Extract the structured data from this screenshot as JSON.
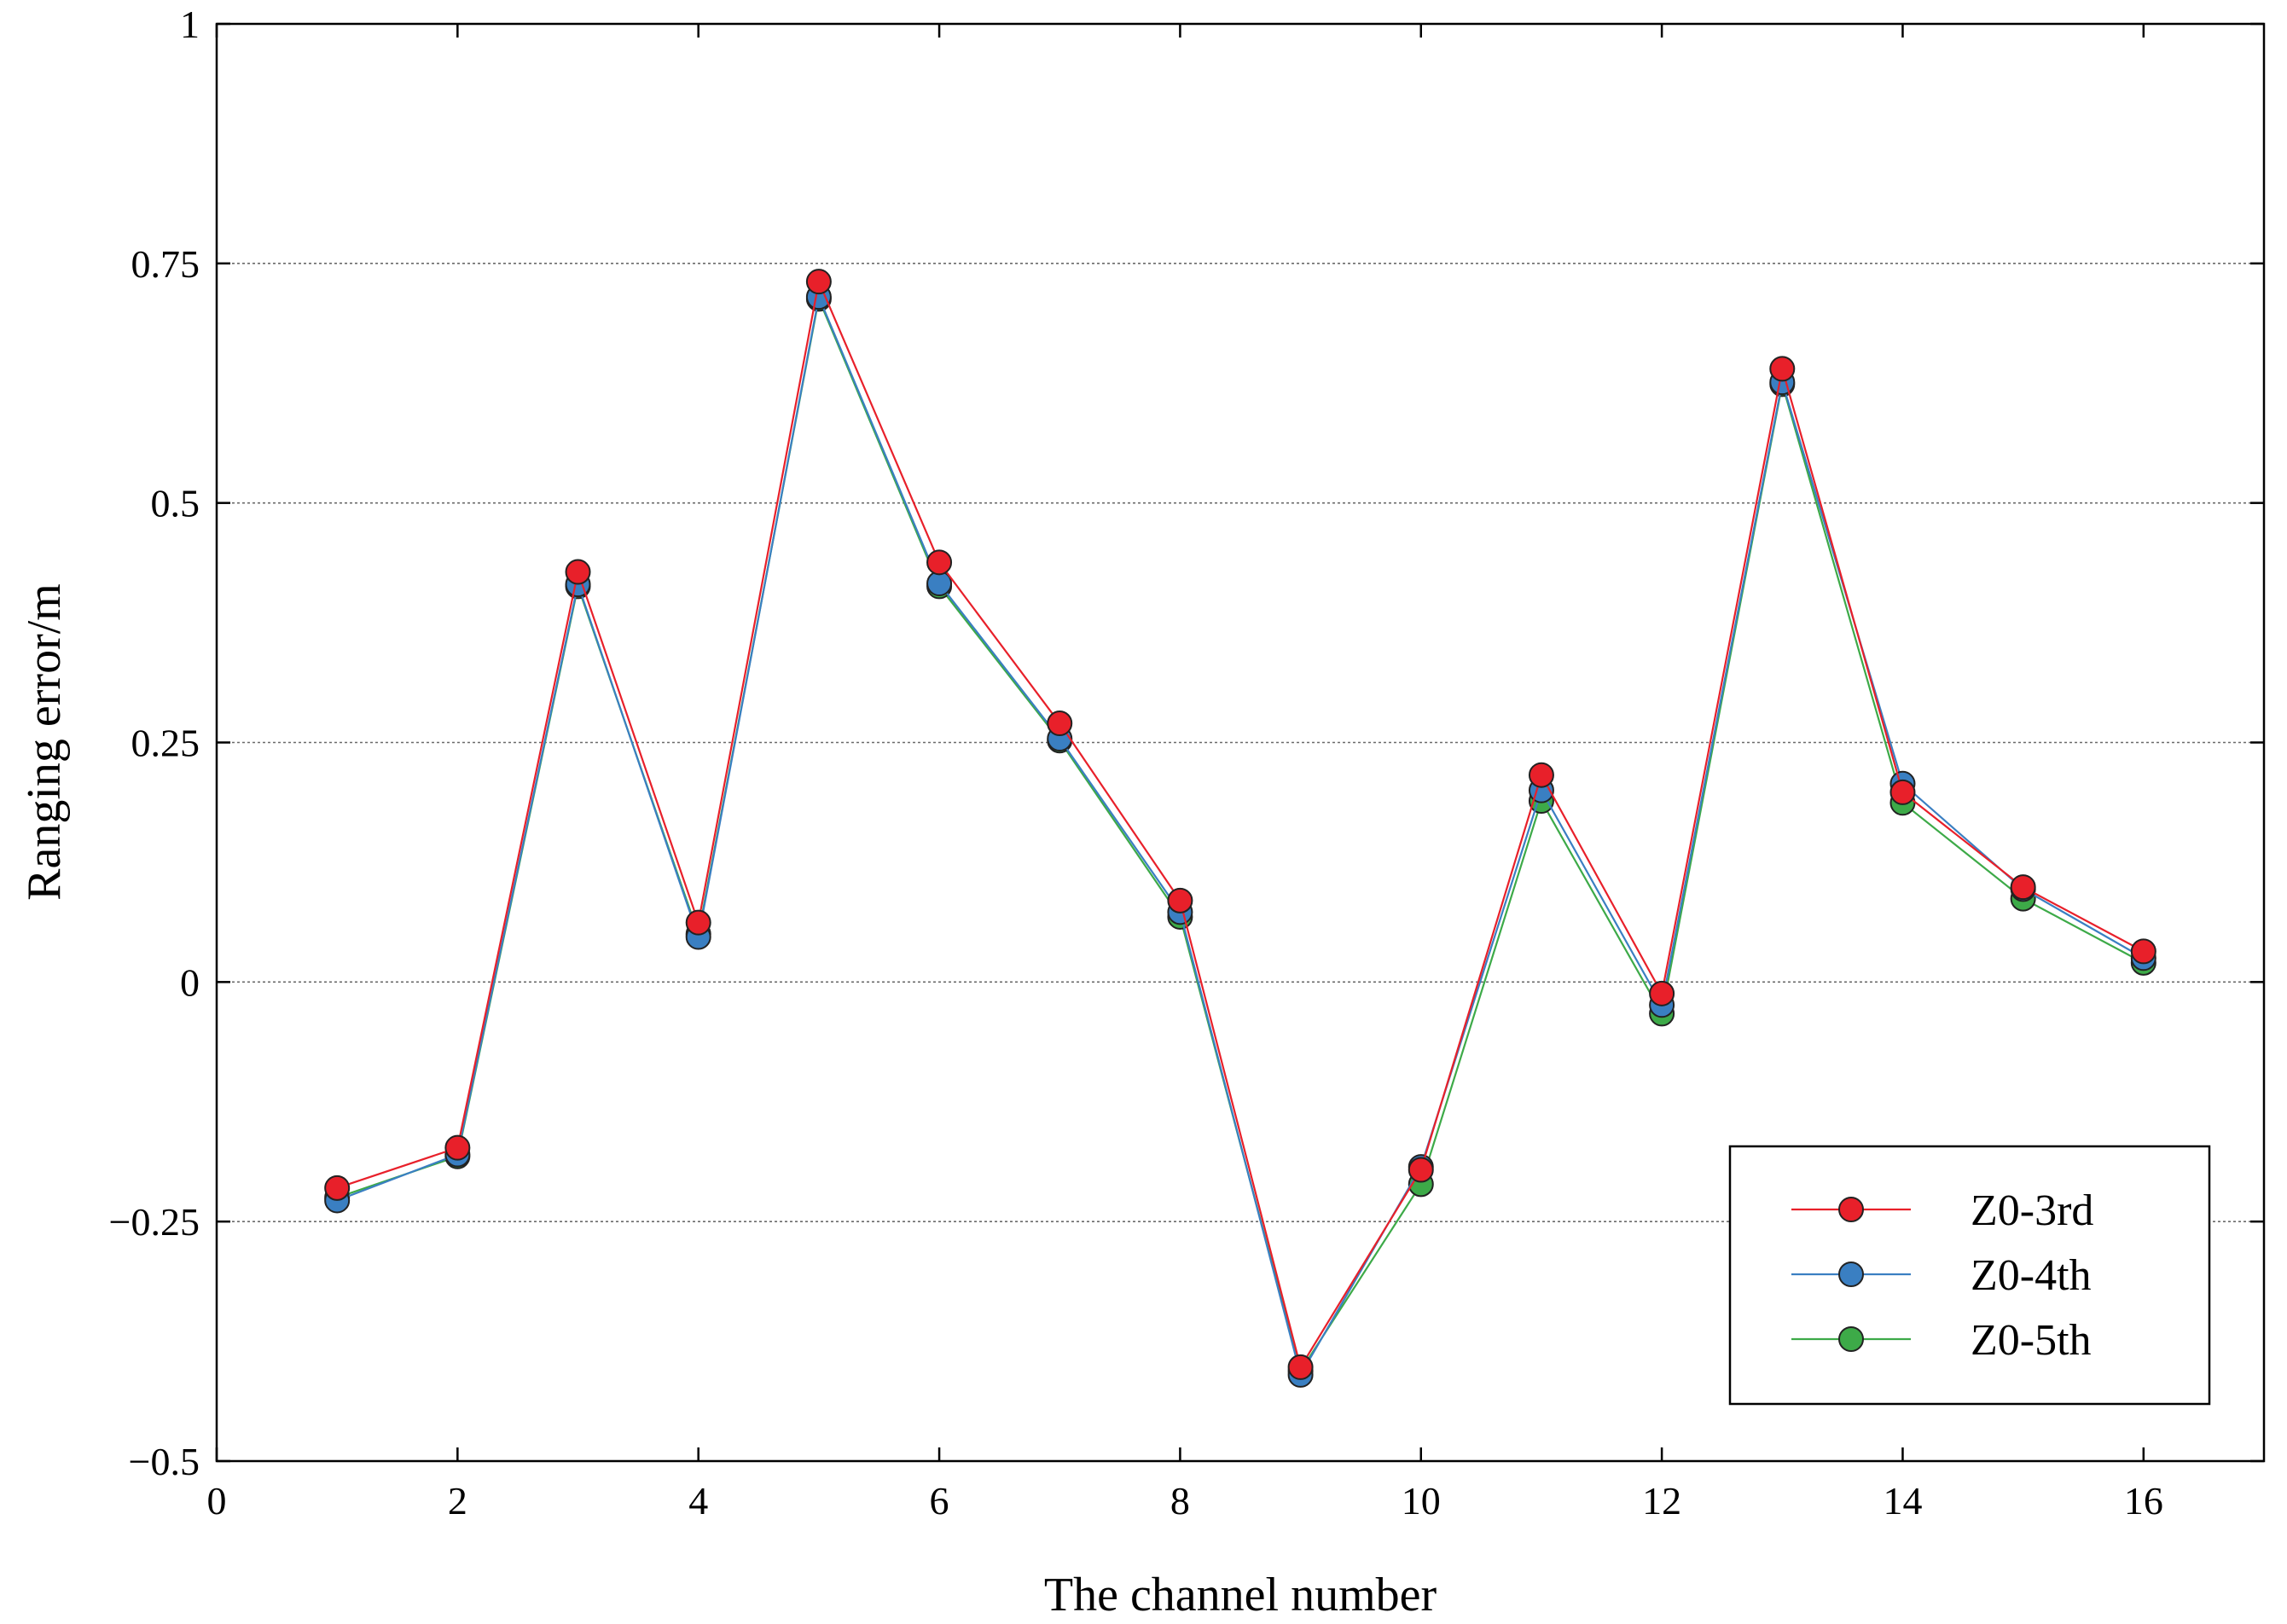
{
  "chart_data": {
    "type": "line",
    "title": "",
    "xlabel": "The channel number",
    "ylabel": "Ranging error/m",
    "xlim": [
      0,
      17
    ],
    "ylim": [
      -0.5,
      1
    ],
    "xticks": [
      0,
      2,
      4,
      6,
      8,
      10,
      12,
      14,
      16
    ],
    "yticks": [
      -0.5,
      -0.25,
      0,
      0.25,
      0.5,
      0.75,
      1
    ],
    "xtick_labels": [
      "0",
      "2",
      "4",
      "6",
      "8",
      "10",
      "12",
      "14",
      "16"
    ],
    "ytick_labels": [
      "−0.5",
      "−0.25",
      "0",
      "0.25",
      "0.5",
      "0.75",
      "1"
    ],
    "grid": "horizontal-dotted",
    "legend_position": "bottom-right",
    "x": [
      1,
      2,
      3,
      4,
      5,
      6,
      7,
      8,
      9,
      10,
      11,
      12,
      13,
      14,
      15,
      16
    ],
    "series": [
      {
        "name": "Z0-3rd",
        "color": "#e8202a",
        "values": [
          -0.215,
          -0.173,
          0.428,
          0.062,
          0.731,
          0.438,
          0.27,
          0.085,
          -0.402,
          -0.196,
          0.216,
          -0.012,
          0.64,
          0.198,
          0.099,
          0.032
        ]
      },
      {
        "name": "Z0-4th",
        "color": "#3a7fc2",
        "values": [
          -0.228,
          -0.18,
          0.415,
          0.047,
          0.715,
          0.416,
          0.254,
          0.073,
          -0.41,
          -0.193,
          0.2,
          -0.024,
          0.626,
          0.207,
          0.097,
          0.025
        ]
      },
      {
        "name": "Z0-5th",
        "color": "#3daa48",
        "values": [
          -0.225,
          -0.182,
          0.413,
          0.05,
          0.713,
          0.413,
          0.252,
          0.068,
          -0.406,
          -0.211,
          0.189,
          -0.033,
          0.624,
          0.187,
          0.087,
          0.02
        ]
      }
    ]
  }
}
